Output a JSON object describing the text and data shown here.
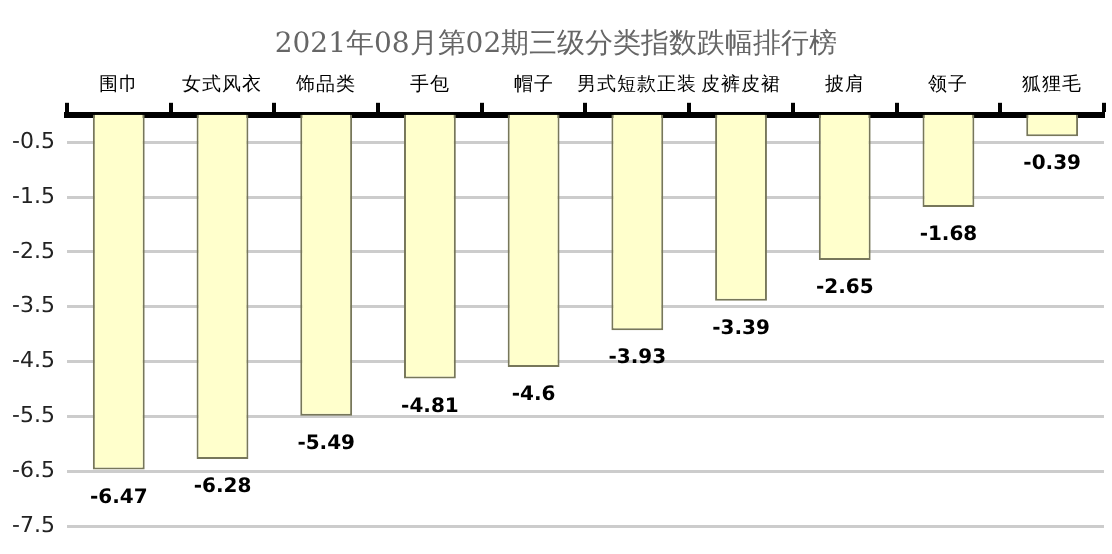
{
  "chart_data": {
    "type": "bar",
    "title": "2021年08月第02期三级分类指数跌幅排行榜",
    "categories": [
      "围巾",
      "女式风衣",
      "饰品类",
      "手包",
      "帽子",
      "男式短款正装",
      "皮裤皮裙",
      "披肩",
      "领子",
      "狐狸毛"
    ],
    "values": [
      -6.47,
      -6.28,
      -5.49,
      -4.81,
      -4.6,
      -3.93,
      -3.39,
      -2.65,
      -1.68,
      -0.39
    ],
    "color": "#ffffcc",
    "ylim": [
      -7.5,
      0
    ],
    "yticks": [
      -0.5,
      -1.5,
      -2.5,
      -3.5,
      -4.5,
      -5.5,
      -6.5,
      -7.5
    ],
    "grid": "y",
    "data_labels": true,
    "legend": false
  }
}
